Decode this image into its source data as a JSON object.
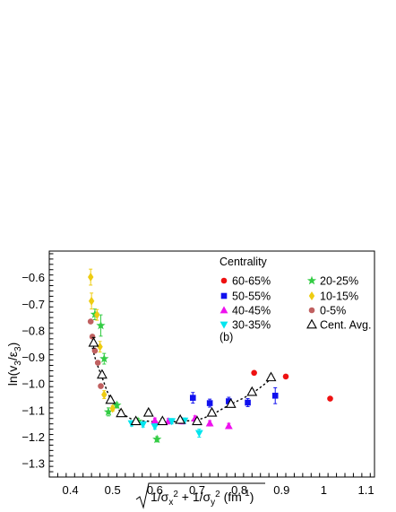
{
  "chart_data": {
    "type": "scatter",
    "xlim": [
      0.35,
      1.12
    ],
    "ylim": [
      -1.35,
      -0.5
    ],
    "x_ticks": [
      "0.4",
      "0.5",
      "0.6",
      "0.7",
      "0.8",
      "0.9",
      "1",
      "1.1"
    ],
    "y_ticks": [
      "-0.6",
      "-0.7",
      "-0.8",
      "-0.9",
      "-1.0",
      "-1.1",
      "-1.2",
      "-1.3"
    ],
    "ylabel": "ln(v3/ε3)",
    "xlabel": "√(1/σx² + 1/σy²) (fm⁻¹)",
    "legend": {
      "title": "Centrality",
      "annotation": "(b)",
      "placement": "top-right"
    },
    "series": [
      {
        "name": "60-65%",
        "marker": "circle",
        "color": "#ee1111",
        "points": [
          [
            0.835,
            -0.958
          ],
          [
            0.91,
            -0.972
          ],
          [
            1.015,
            -1.055
          ]
        ],
        "err": [
          0,
          0,
          0
        ]
      },
      {
        "name": "50-55%",
        "marker": "square",
        "color": "#1010ee",
        "points": [
          [
            0.69,
            -1.052
          ],
          [
            0.73,
            -1.072
          ],
          [
            0.775,
            -1.065
          ],
          [
            0.82,
            -1.07
          ],
          [
            0.885,
            -1.044
          ]
        ],
        "err": [
          0.02,
          0.015,
          0.015,
          0.015,
          0.03
        ]
      },
      {
        "name": "40-45%",
        "marker": "triangle-up",
        "color": "#ee11ee",
        "points": [
          [
            0.6,
            -1.138
          ],
          [
            0.632,
            -1.14
          ],
          [
            0.665,
            -1.14
          ],
          [
            0.695,
            -1.13
          ],
          [
            0.73,
            -1.148
          ],
          [
            0.775,
            -1.158
          ]
        ],
        "err": [
          0.01,
          0.01,
          0.01,
          0.01,
          0.01,
          0.01
        ]
      },
      {
        "name": "30-35%",
        "marker": "triangle-down",
        "color": "#00e5ee",
        "points": [
          [
            0.545,
            -1.148
          ],
          [
            0.572,
            -1.152
          ],
          [
            0.6,
            -1.16
          ],
          [
            0.64,
            -1.14
          ],
          [
            0.67,
            -1.138
          ],
          [
            0.705,
            -1.185
          ]
        ],
        "err": [
          0.01,
          0.01,
          0.01,
          0.01,
          0.01,
          0.015
        ]
      },
      {
        "name": "20-25%",
        "marker": "star",
        "color": "#33cc44",
        "points": [
          [
            0.458,
            -0.738
          ],
          [
            0.472,
            -0.78
          ],
          [
            0.48,
            -0.905
          ],
          [
            0.49,
            -1.105
          ],
          [
            0.51,
            -1.08
          ],
          [
            0.56,
            -1.14
          ],
          [
            0.605,
            -1.208
          ]
        ],
        "err": [
          0.02,
          0.04,
          0.02,
          0.015,
          0.01,
          0.01,
          0.01
        ]
      },
      {
        "name": "10-15%",
        "marker": "diamond",
        "color": "#eecc11",
        "points": [
          [
            0.448,
            -0.598
          ],
          [
            0.45,
            -0.688
          ],
          [
            0.463,
            -0.74
          ],
          [
            0.47,
            -0.86
          ],
          [
            0.48,
            -1.04
          ],
          [
            0.5,
            -1.092
          ],
          [
            0.52,
            -1.108
          ]
        ],
        "err": [
          0.03,
          0.03,
          0.02,
          0.02,
          0.015,
          0.01,
          0.01
        ]
      },
      {
        "name": "0-5%",
        "marker": "circle",
        "color": "#c06060",
        "points": [
          [
            0.448,
            -0.765
          ],
          [
            0.452,
            -0.822
          ],
          [
            0.458,
            -0.875
          ],
          [
            0.465,
            -0.92
          ],
          [
            0.472,
            -1.008
          ]
        ],
        "err": [
          0,
          0,
          0,
          0,
          0
        ]
      },
      {
        "name": "Cent. Avg.",
        "marker": "open-triangle",
        "color": "#000000",
        "points": [
          [
            0.455,
            -0.845
          ],
          [
            0.475,
            -0.965
          ],
          [
            0.495,
            -1.06
          ],
          [
            0.52,
            -1.11
          ],
          [
            0.555,
            -1.14
          ],
          [
            0.585,
            -1.108
          ],
          [
            0.618,
            -1.14
          ],
          [
            0.66,
            -1.135
          ],
          [
            0.7,
            -1.14
          ],
          [
            0.735,
            -1.108
          ],
          [
            0.78,
            -1.075
          ],
          [
            0.83,
            -1.03
          ],
          [
            0.875,
            -0.975
          ]
        ],
        "err": [
          0.02,
          0.01,
          0.01,
          0.01,
          0.01,
          0.01,
          0.01,
          0.01,
          0.01,
          0.01,
          0.01,
          0.01,
          0.01
        ]
      }
    ],
    "fit_curve": [
      [
        0.45,
        -0.85
      ],
      [
        0.46,
        -0.91
      ],
      [
        0.475,
        -0.975
      ],
      [
        0.495,
        -1.055
      ],
      [
        0.52,
        -1.105
      ],
      [
        0.55,
        -1.135
      ],
      [
        0.585,
        -1.14
      ],
      [
        0.62,
        -1.145
      ],
      [
        0.66,
        -1.14
      ],
      [
        0.7,
        -1.135
      ],
      [
        0.735,
        -1.115
      ],
      [
        0.775,
        -1.08
      ],
      [
        0.83,
        -1.035
      ],
      [
        0.88,
        -0.975
      ]
    ]
  }
}
